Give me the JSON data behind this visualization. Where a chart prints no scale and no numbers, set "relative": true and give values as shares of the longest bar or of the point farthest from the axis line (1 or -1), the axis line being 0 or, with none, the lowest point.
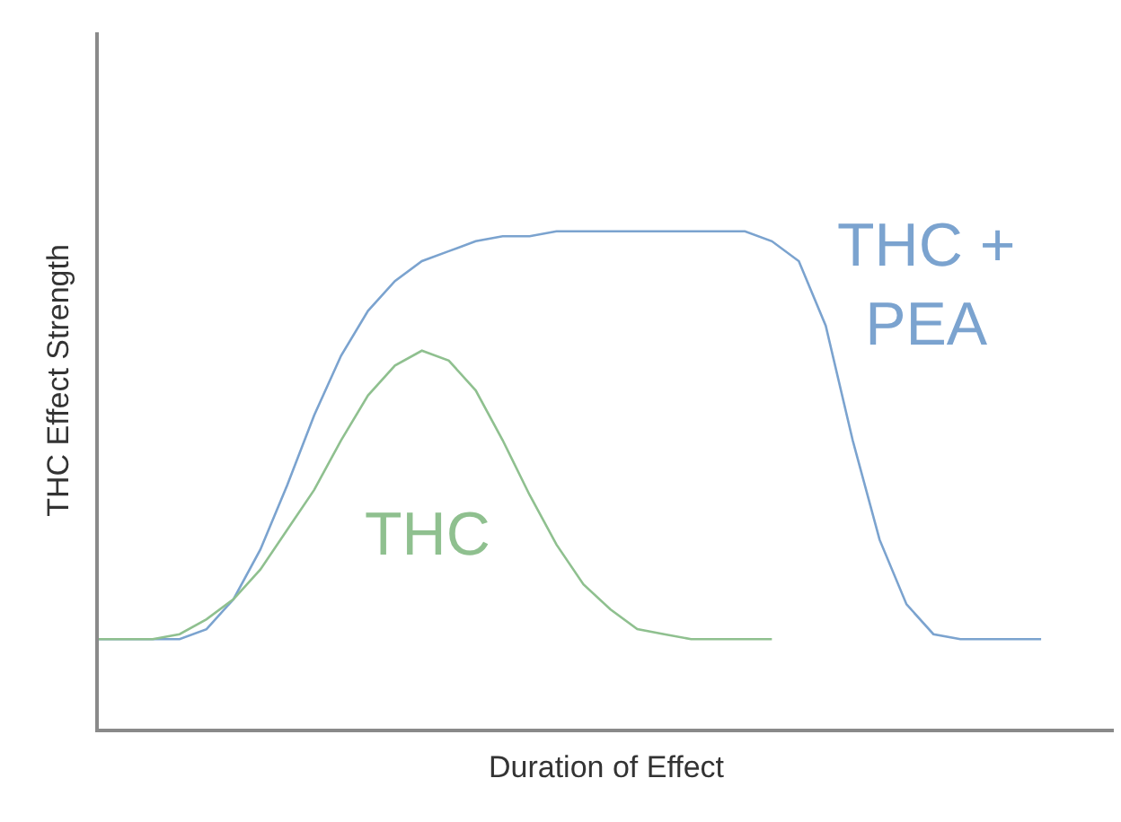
{
  "chart_data": {
    "type": "line",
    "relative": true,
    "xlabel": "Duration of Effect",
    "ylabel": "THC Effect Strength",
    "categories": [
      null,
      null,
      null,
      null,
      null,
      null,
      null,
      null,
      null,
      null,
      null,
      null,
      null,
      null,
      null,
      null,
      null,
      null,
      null,
      null,
      null,
      null,
      null,
      null,
      null,
      null,
      null,
      null,
      null,
      null,
      null,
      null,
      null,
      null,
      null,
      null
    ],
    "series": [
      {
        "name": "THC + PEA",
        "color": "#7ba3cf",
        "values": [
          0.18,
          0.18,
          0.18,
          0.18,
          0.2,
          0.26,
          0.36,
          0.49,
          0.63,
          0.75,
          0.84,
          0.9,
          0.94,
          0.96,
          0.98,
          0.99,
          0.99,
          1,
          1,
          1,
          1,
          1,
          1,
          1,
          1,
          0.98,
          0.94,
          0.81,
          0.58,
          0.38,
          0.25,
          0.19,
          0.18,
          0.18,
          0.18,
          0.18
        ]
      },
      {
        "name": "THC",
        "color": "#8fc08f",
        "values": [
          0.18,
          0.18,
          0.18,
          0.19,
          0.22,
          0.26,
          0.32,
          0.4,
          0.48,
          0.58,
          0.67,
          0.73,
          0.76,
          0.74,
          0.68,
          0.58,
          0.47,
          0.37,
          0.29,
          0.24,
          0.2,
          0.19,
          0.18,
          0.18,
          0.18,
          0.18,
          null,
          null,
          null,
          null,
          null,
          null,
          null,
          null,
          null,
          null
        ]
      }
    ],
    "legend": false,
    "marker": "none",
    "line_style": "solid"
  }
}
